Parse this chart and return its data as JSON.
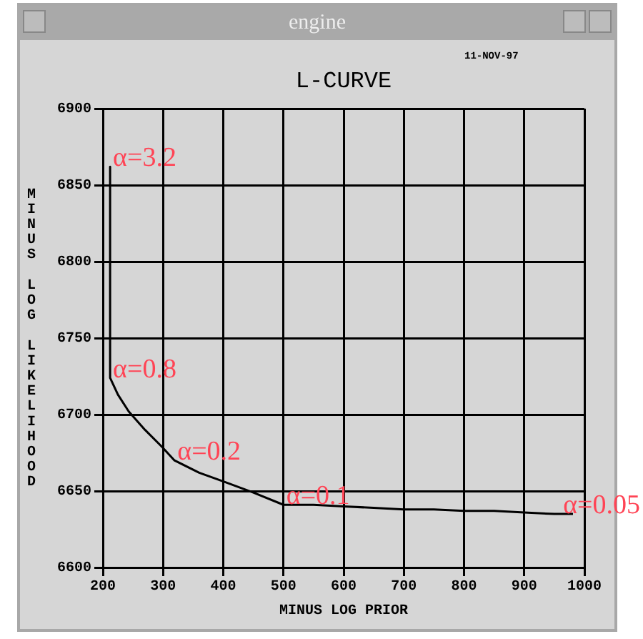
{
  "chart_data": {
    "type": "line",
    "title": "L-CURVE",
    "xlabel": "MINUS LOG PRIOR",
    "ylabel": "MINUS LOG LIKELIHOOD",
    "annotations": [
      "engine",
      "11-NOV-97",
      {
        "text": "α=3.2",
        "x": 212,
        "y": 6862
      },
      {
        "text": "α=0.8",
        "x": 212,
        "y": 6724
      },
      {
        "text": "α=0.2",
        "x": 319,
        "y": 6670
      },
      {
        "text": "α=0.1",
        "x": 500,
        "y": 6641
      },
      {
        "text": "α=0.05",
        "x": 981,
        "y": 6635
      }
    ],
    "series": [
      {
        "color": "#000000",
        "x": [
          212,
          212,
          225,
          243,
          270,
          298,
          319,
          360,
          402,
          450,
          500,
          550,
          600,
          650,
          700,
          750,
          800,
          850,
          900,
          950,
          981
        ],
        "values": [
          6862,
          6724,
          6713,
          6702,
          6690,
          6679,
          6670,
          6662,
          6656,
          6649,
          6641,
          6641,
          6640,
          6639,
          6638,
          6638,
          6637,
          6637,
          6636,
          6635,
          6635
        ]
      }
    ],
    "xlim": [
      200,
      1000
    ],
    "xticks": [
      200,
      300,
      400,
      500,
      600,
      700,
      800,
      900,
      1000
    ],
    "ylim": [
      6600,
      6900
    ],
    "yticks": [
      6600,
      6650,
      6700,
      6750,
      6800,
      6850,
      6900
    ],
    "grid": true,
    "legend": false,
    "marker": "none",
    "line_style": "solid"
  }
}
